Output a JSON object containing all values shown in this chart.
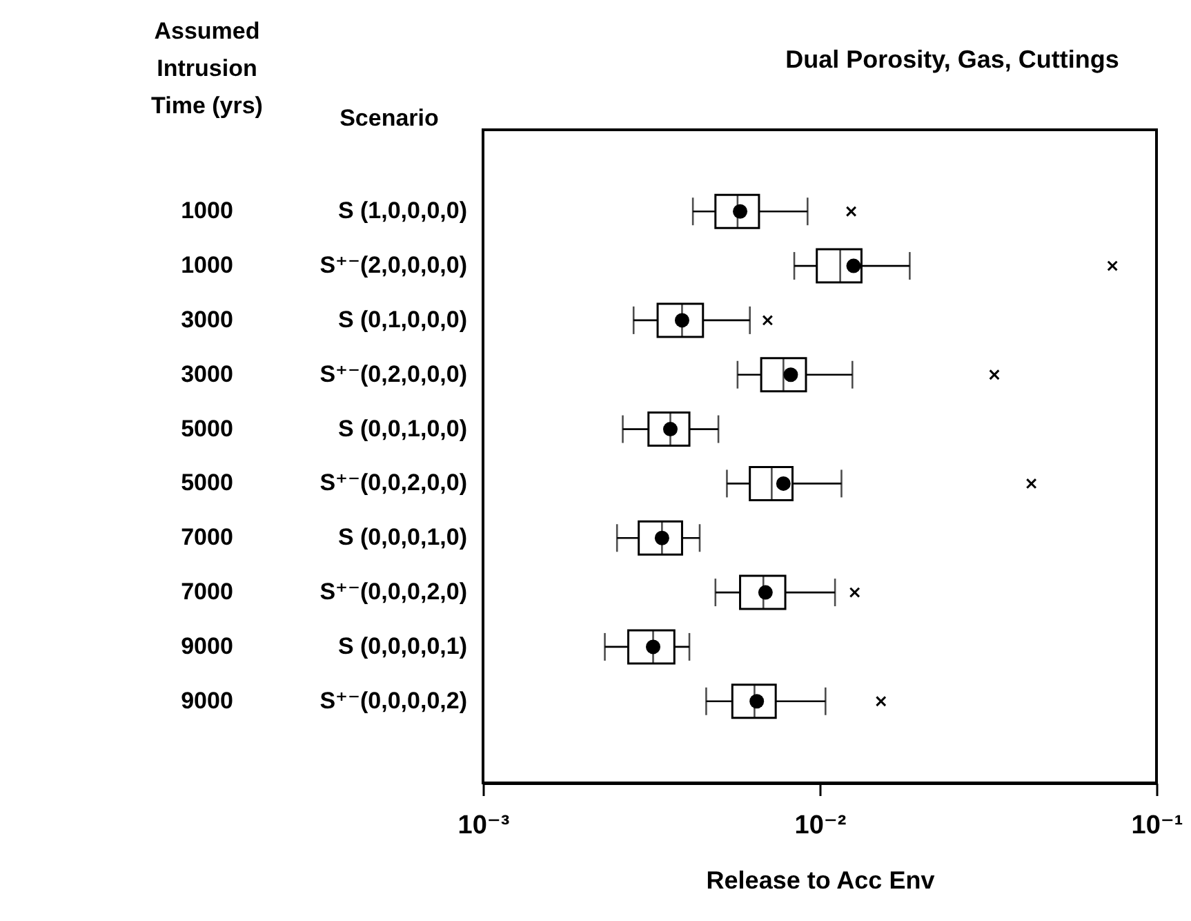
{
  "chart_data": {
    "type": "box",
    "orientation": "horizontal",
    "title": "Dual Porosity, Gas, Cuttings",
    "xlabel": "Release to Acc Env",
    "ylabel": "Scenario",
    "y2label": "Assumed Intrusion Time (yrs)",
    "log": "x",
    "color": "#000000",
    "categories": [
      "S (1,0,0,0,0)",
      "S⁺⁻(2,0,0,0,0)",
      "S (0,1,0,0,0)",
      "S⁺⁻(0,2,0,0,0)",
      "S (0,0,1,0,0)",
      "S⁺⁻(0,0,2,0,0)",
      "S (0,0,0,1,0)",
      "S⁺⁻(0,0,0,2,0)",
      "S (0,0,0,0,1)",
      "S⁺⁻(0,0,0,0,2)"
    ],
    "y2_categories": [
      "1000",
      "1000",
      "3000",
      "3000",
      "5000",
      "5000",
      "7000",
      "7000",
      "9000",
      "9000"
    ],
    "xlim": [
      0.001,
      0.1
    ],
    "xticks": [
      {
        "value": 0.001,
        "label": "10⁻³"
      },
      {
        "value": 0.01,
        "label": "10⁻²"
      },
      {
        "value": 0.1,
        "label": "10⁻¹"
      }
    ],
    "boxes": [
      {
        "low": 0.0042,
        "q1": 0.0049,
        "median": 0.0057,
        "q3": 0.0066,
        "high": 0.0092,
        "mean": 0.0058,
        "outliers": [
          0.0124
        ]
      },
      {
        "low": 0.0084,
        "q1": 0.0098,
        "median": 0.0115,
        "q3": 0.0133,
        "high": 0.0185,
        "mean": 0.0126,
        "outliers": [
          0.074
        ]
      },
      {
        "low": 0.0028,
        "q1": 0.0033,
        "median": 0.0039,
        "q3": 0.0045,
        "high": 0.0062,
        "mean": 0.0039,
        "outliers": [
          0.007
        ]
      },
      {
        "low": 0.0057,
        "q1": 0.0067,
        "median": 0.0078,
        "q3": 0.0091,
        "high": 0.0125,
        "mean": 0.0082,
        "outliers": [
          0.033
        ]
      },
      {
        "low": 0.0026,
        "q1": 0.0031,
        "median": 0.0036,
        "q3": 0.0041,
        "high": 0.005,
        "mean": 0.0036
      },
      {
        "low": 0.0053,
        "q1": 0.0062,
        "median": 0.0072,
        "q3": 0.0083,
        "high": 0.0116,
        "mean": 0.0078,
        "outliers": [
          0.0425
        ]
      },
      {
        "low": 0.0025,
        "q1": 0.0029,
        "median": 0.0034,
        "q3": 0.0039,
        "high": 0.0044,
        "mean": 0.0034
      },
      {
        "low": 0.0049,
        "q1": 0.0058,
        "median": 0.0068,
        "q3": 0.0079,
        "high": 0.0111,
        "mean": 0.0069,
        "outliers": [
          0.0127
        ]
      },
      {
        "low": 0.0023,
        "q1": 0.0027,
        "median": 0.0032,
        "q3": 0.0037,
        "high": 0.0041,
        "mean": 0.0032
      },
      {
        "low": 0.0046,
        "q1": 0.0055,
        "median": 0.0064,
        "q3": 0.0074,
        "high": 0.0104,
        "mean": 0.0065,
        "outliers": [
          0.0152
        ]
      }
    ]
  }
}
